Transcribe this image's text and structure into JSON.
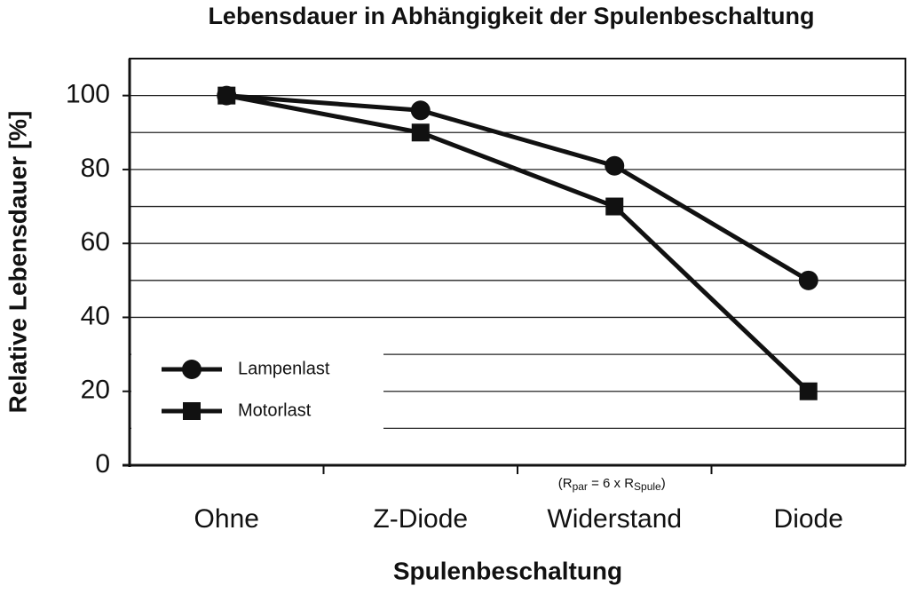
{
  "chart_data": {
    "type": "line",
    "title": "Lebensdauer in Abhängigkeit der Spulenbeschaltung",
    "x_label": "Spulenbeschaltung",
    "y_label": "Relative Lebensdauer [%]",
    "categories": [
      "Ohne",
      "Z-Diode",
      "Widerstand",
      "Diode"
    ],
    "series": [
      {
        "name": "Lampenlast",
        "color": "#111111",
        "marker": "circle",
        "values": [
          100,
          96,
          81,
          50
        ]
      },
      {
        "name": "Motorlast",
        "color": "#111111",
        "marker": "square",
        "values": [
          100,
          90,
          70,
          20
        ]
      }
    ],
    "ylim": [
      0,
      110
    ],
    "yticks": [
      0,
      20,
      40,
      60,
      80,
      100
    ],
    "minor_yticks": [
      10,
      30,
      50,
      70,
      90
    ],
    "grid": true,
    "legend": "lower-left",
    "annotation": [
      "(R",
      "par",
      " = 6 x R",
      "Spule",
      ")"
    ]
  }
}
